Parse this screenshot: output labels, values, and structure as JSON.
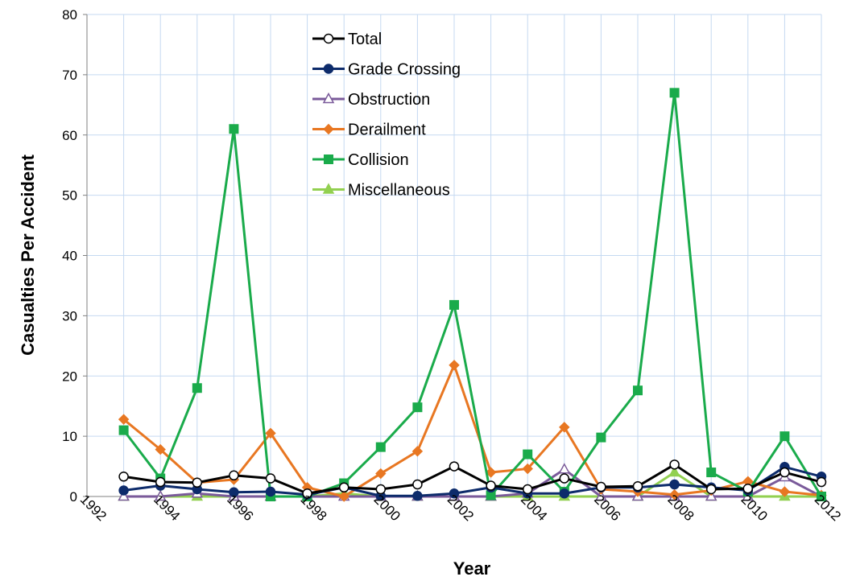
{
  "chart_data": {
    "type": "line",
    "title": "",
    "xlabel": "Year",
    "ylabel": "Casualties Per Accident",
    "xlim": [
      1992,
      2012
    ],
    "ylim": [
      0,
      80
    ],
    "xticks": [
      "1992",
      "1994",
      "1996",
      "1998",
      "2000",
      "2002",
      "2004",
      "2006",
      "2008",
      "2010",
      "2012"
    ],
    "yticks": [
      "0",
      "10",
      "20",
      "30",
      "40",
      "50",
      "60",
      "70",
      "80"
    ],
    "grid": true,
    "legend_position": "top-center",
    "x": [
      1993,
      1994,
      1995,
      1996,
      1997,
      1998,
      1999,
      2000,
      2001,
      2002,
      2003,
      2004,
      2005,
      2006,
      2007,
      2008,
      2009,
      2010,
      2011,
      2012
    ],
    "series": [
      {
        "name": "Total",
        "color": "#000000",
        "marker": "circle-open",
        "values": [
          3.3,
          2.4,
          2.3,
          3.5,
          3.0,
          0.5,
          1.5,
          1.2,
          2.0,
          5.0,
          1.8,
          1.2,
          3.0,
          1.6,
          1.7,
          5.3,
          1.2,
          1.3,
          4.0,
          2.4
        ]
      },
      {
        "name": "Grade Crossing",
        "color": "#0d2b6b",
        "marker": "circle",
        "values": [
          1.0,
          1.8,
          1.2,
          0.7,
          0.8,
          0.3,
          1.5,
          0.1,
          0.1,
          0.5,
          1.5,
          0.5,
          0.5,
          1.5,
          1.5,
          2.0,
          1.5,
          1.0,
          4.9,
          3.3
        ]
      },
      {
        "name": "Obstruction",
        "color": "#7a5a9a",
        "marker": "triangle-open",
        "values": [
          0.0,
          0.0,
          0.5,
          0.0,
          0.0,
          0.0,
          0.0,
          0.0,
          0.0,
          0.0,
          0.0,
          0.5,
          4.5,
          0.0,
          0.0,
          0.0,
          0.0,
          0.0,
          3.2,
          0.0
        ]
      },
      {
        "name": "Derailment",
        "color": "#e87722",
        "marker": "diamond",
        "values": [
          12.8,
          7.8,
          2.3,
          2.8,
          10.5,
          1.5,
          0.0,
          3.8,
          7.5,
          21.8,
          4.0,
          4.6,
          11.5,
          1.2,
          0.8,
          0.3,
          1.0,
          2.5,
          0.8,
          0.2
        ]
      },
      {
        "name": "Collision",
        "color": "#1aab4b",
        "marker": "square",
        "values": [
          11.0,
          3.0,
          18.0,
          61.0,
          0.0,
          0.0,
          2.2,
          8.2,
          14.8,
          31.8,
          0.2,
          7.0,
          0.8,
          9.8,
          17.6,
          67.0,
          4.0,
          0.8,
          10.0,
          0.0
        ]
      },
      {
        "name": "Miscellaneous",
        "color": "#92d050",
        "marker": "triangle",
        "values": [
          0.0,
          0.0,
          0.0,
          0.0,
          0.0,
          0.0,
          0.5,
          0.0,
          0.0,
          0.0,
          0.0,
          0.0,
          0.0,
          0.0,
          0.0,
          4.0,
          0.0,
          0.0,
          0.0,
          0.0
        ]
      }
    ]
  }
}
